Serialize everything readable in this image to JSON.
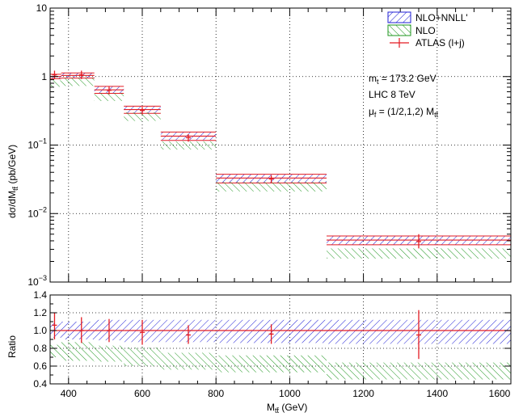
{
  "chart_data": [
    {
      "type": "bar",
      "panel": "main",
      "ylabel": "dσ/dM_tt̄ (pb/GeV)",
      "xlim": [
        350,
        1600
      ],
      "ylim": [
        0.001,
        10
      ],
      "yscale": "log",
      "grid": true,
      "y_ticks": [
        {
          "label": "10",
          "value": 10
        },
        {
          "label": "1",
          "value": 1
        },
        {
          "label": "10",
          "sup": "−1",
          "value": 0.1
        },
        {
          "label": "10",
          "sup": "−2",
          "value": 0.01
        },
        {
          "label": "10",
          "sup": "−3",
          "value": 0.001
        }
      ],
      "bins": [
        [
          345,
          380
        ],
        [
          380,
          470
        ],
        [
          470,
          550
        ],
        [
          550,
          650
        ],
        [
          650,
          800
        ],
        [
          800,
          1100
        ],
        [
          1100,
          1600
        ]
      ],
      "series": [
        {
          "name": "NLO+NNLL'",
          "color": "#1f1fd6",
          "style": "band",
          "central": [
            1.0,
            1.04,
            0.64,
            0.33,
            0.135,
            0.033,
            0.0041
          ],
          "low": [
            0.93,
            0.95,
            0.57,
            0.29,
            0.117,
            0.028,
            0.0035
          ],
          "high": [
            1.08,
            1.13,
            0.72,
            0.37,
            0.155,
            0.0375,
            0.0047
          ]
        },
        {
          "name": "NLO",
          "color": "#1e961e",
          "style": "band",
          "central": [
            0.8,
            0.84,
            0.5,
            0.26,
            0.1,
            0.025,
            0.0027
          ],
          "low": [
            0.71,
            0.73,
            0.44,
            0.225,
            0.086,
            0.021,
            0.0022
          ],
          "high": [
            0.88,
            0.95,
            0.57,
            0.3,
            0.113,
            0.029,
            0.0031
          ]
        },
        {
          "name": "ATLAS (l+j)",
          "color": "#e31b23",
          "style": "points",
          "x": [
            362,
            435,
            510,
            600,
            725,
            950,
            1350
          ],
          "y": [
            1.06,
            1.06,
            0.63,
            0.32,
            0.128,
            0.032,
            0.0039
          ],
          "ylow": [
            0.92,
            0.92,
            0.55,
            0.28,
            0.112,
            0.028,
            0.0031
          ],
          "yhigh": [
            1.22,
            1.22,
            0.71,
            0.36,
            0.144,
            0.036,
            0.005
          ]
        }
      ]
    },
    {
      "type": "bar",
      "panel": "ratio",
      "xlabel": "M_tt̄ (GeV)",
      "ylabel": "Ratio",
      "xlim": [
        350,
        1600
      ],
      "ylim": [
        0.4,
        1.4
      ],
      "grid": true,
      "x_ticks": [
        400,
        600,
        800,
        1000,
        1200,
        1400,
        1600
      ],
      "y_ticks": [
        "0.4",
        "0.6",
        "0.8",
        "1.0",
        "1.2",
        "1.4"
      ],
      "bins": [
        [
          345,
          380
        ],
        [
          380,
          470
        ],
        [
          470,
          550
        ],
        [
          550,
          650
        ],
        [
          650,
          800
        ],
        [
          800,
          1100
        ],
        [
          1100,
          1600
        ]
      ],
      "series": [
        {
          "name": "NLO+NNLL'",
          "color": "#1f1fd6",
          "central": [
            1.0,
            1.0,
            1.0,
            1.0,
            1.0,
            1.0,
            1.0
          ],
          "low": [
            0.92,
            0.9,
            0.89,
            0.87,
            0.87,
            0.86,
            0.85
          ],
          "high": [
            1.08,
            1.1,
            1.12,
            1.12,
            1.12,
            1.12,
            1.12
          ]
        },
        {
          "name": "NLO",
          "color": "#1e961e",
          "central": [
            0.77,
            0.78,
            0.74,
            0.71,
            0.66,
            0.63,
            0.53
          ],
          "low": [
            0.7,
            0.66,
            0.65,
            0.6,
            0.56,
            0.53,
            0.45
          ],
          "high": [
            0.84,
            0.87,
            0.83,
            0.81,
            0.75,
            0.72,
            0.64
          ]
        },
        {
          "name": "ATLAS (l+j)",
          "color": "#e31b23",
          "x": [
            362,
            435,
            510,
            600,
            725,
            950,
            1350
          ],
          "y": [
            1.06,
            1.0,
            1.0,
            0.98,
            0.95,
            0.96,
            0.95
          ],
          "ylow": [
            0.9,
            0.86,
            0.87,
            0.84,
            0.85,
            0.85,
            0.68
          ],
          "yhigh": [
            1.2,
            1.15,
            1.13,
            1.12,
            1.06,
            1.07,
            1.23
          ]
        }
      ]
    }
  ],
  "legend": {
    "entries": [
      {
        "label": "NLO+NNLL'",
        "color": "#1f1fd6",
        "kind": "band"
      },
      {
        "label": "NLO",
        "color": "#1e961e",
        "kind": "band"
      },
      {
        "label": "ATLAS (l+j)",
        "color": "#e31b23",
        "kind": "marker"
      }
    ]
  },
  "annotations": {
    "mass": "m_t = 173.2 GeV",
    "lhc": "LHC 8 TeV",
    "scale": "μ_f = (1/2,1,2) M_tt̄"
  }
}
